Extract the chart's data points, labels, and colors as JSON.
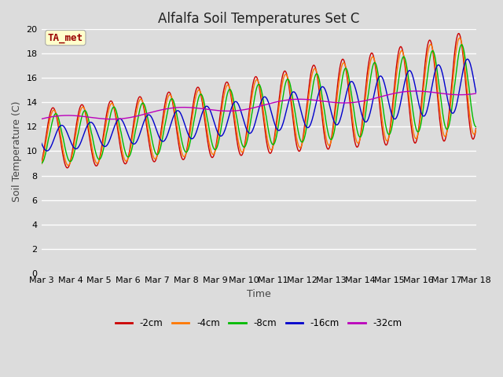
{
  "title": "Alfalfa Soil Temperatures Set C",
  "xlabel": "Time",
  "ylabel": "Soil Temperature (C)",
  "ylim": [
    0,
    20
  ],
  "xlim": [
    0,
    15
  ],
  "background_color": "#dcdcdc",
  "plot_bg_color": "#dcdcdc",
  "annotation_label": "TA_met",
  "annotation_color": "#990000",
  "annotation_bg": "#ffffcc",
  "series_colors": [
    "#cc0000",
    "#ff7700",
    "#00bb00",
    "#0000cc",
    "#bb00bb"
  ],
  "series_labels": [
    "-2cm",
    "-4cm",
    "-8cm",
    "-16cm",
    "-32cm"
  ],
  "x_tick_labels": [
    "Mar 3",
    "Mar 4",
    "Mar 5",
    "Mar 6",
    "Mar 7",
    "Mar 8",
    "Mar 9",
    "Mar 10",
    "Mar 11",
    "Mar 12",
    "Mar 13",
    "Mar 14",
    "Mar 15",
    "Mar 16",
    "Mar 17",
    "Mar 18"
  ],
  "grid_color": "#ffffff",
  "title_fontsize": 12,
  "axis_label_fontsize": 9,
  "tick_fontsize": 8
}
